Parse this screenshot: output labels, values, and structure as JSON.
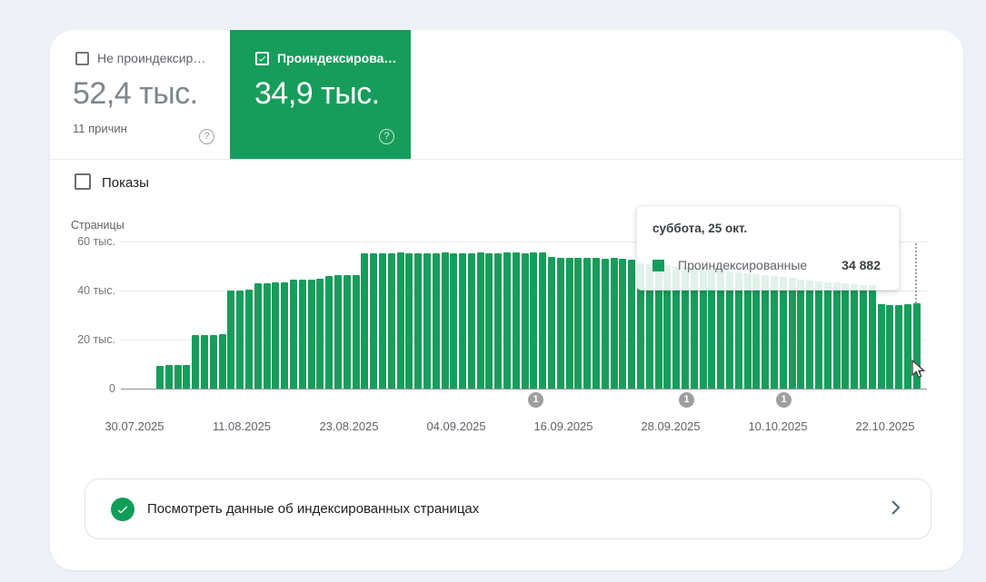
{
  "summary": {
    "not_indexed": {
      "label": "Не проиндексир…",
      "value": "52,4 тыс.",
      "reasons": "11 причин",
      "checked": false,
      "help_icon": "question-mark"
    },
    "indexed": {
      "label": "Проиндексирова…",
      "value": "34,9 тыс.",
      "checked": true,
      "help_icon": "question-mark"
    }
  },
  "impressions_toggle": {
    "label": "Показы",
    "checked": false
  },
  "chart_data": {
    "type": "bar",
    "ylabel": "Страницы",
    "ylim": [
      0,
      60000
    ],
    "grid": true,
    "y_ticks": [
      {
        "label": "60 тыс.",
        "value": 60000
      },
      {
        "label": "40 тыс.",
        "value": 40000
      },
      {
        "label": "20 тыс.",
        "value": 20000
      },
      {
        "label": "0",
        "value": 0
      }
    ],
    "x_labels": [
      "30.07.2025",
      "11.08.2025",
      "23.08.2025",
      "04.09.2025",
      "16.09.2025",
      "28.09.2025",
      "10.10.2025",
      "22.10.2025"
    ],
    "series": [
      {
        "name": "Проиндексированные",
        "color": "#179d5b",
        "values": [
          9300,
          9500,
          9500,
          9600,
          21800,
          22000,
          22000,
          22200,
          40000,
          40000,
          40200,
          43000,
          43000,
          43200,
          43200,
          44500,
          44500,
          44600,
          44800,
          46000,
          46200,
          46200,
          46400,
          55200,
          55300,
          55100,
          55200,
          55400,
          55300,
          55200,
          55300,
          55200,
          55400,
          55300,
          55200,
          55300,
          55400,
          55200,
          55300,
          55500,
          55400,
          55300,
          55600,
          55400,
          53600,
          53500,
          53400,
          53300,
          53400,
          53200,
          53000,
          53300,
          52800,
          52600,
          51200,
          50800,
          50500,
          50200,
          49800,
          49500,
          49200,
          48800,
          48500,
          48200,
          47800,
          47400,
          47000,
          46600,
          46200,
          45800,
          45400,
          45000,
          44600,
          44200,
          43800,
          43500,
          43200,
          43000,
          42700,
          42400,
          42100,
          34300,
          34200,
          34200,
          34300,
          34882
        ]
      }
    ],
    "annotations": [
      {
        "label": "1",
        "pos": 0.514
      },
      {
        "label": "1",
        "pos": 0.701
      },
      {
        "label": "1",
        "pos": 0.822
      }
    ],
    "tooltip": {
      "date_label": "суббота, 25 окт.",
      "series_label": "Проиндексированные",
      "value_label": "34 882"
    }
  },
  "footer_link": {
    "label": "Посмотреть данные об индексированных страницах",
    "icon": "check-circle",
    "chevron_icon": "chevron-right"
  },
  "colors": {
    "accent_green": "#179d5b",
    "background": "#eef1f7",
    "marker_gray": "#9e9e9e"
  }
}
